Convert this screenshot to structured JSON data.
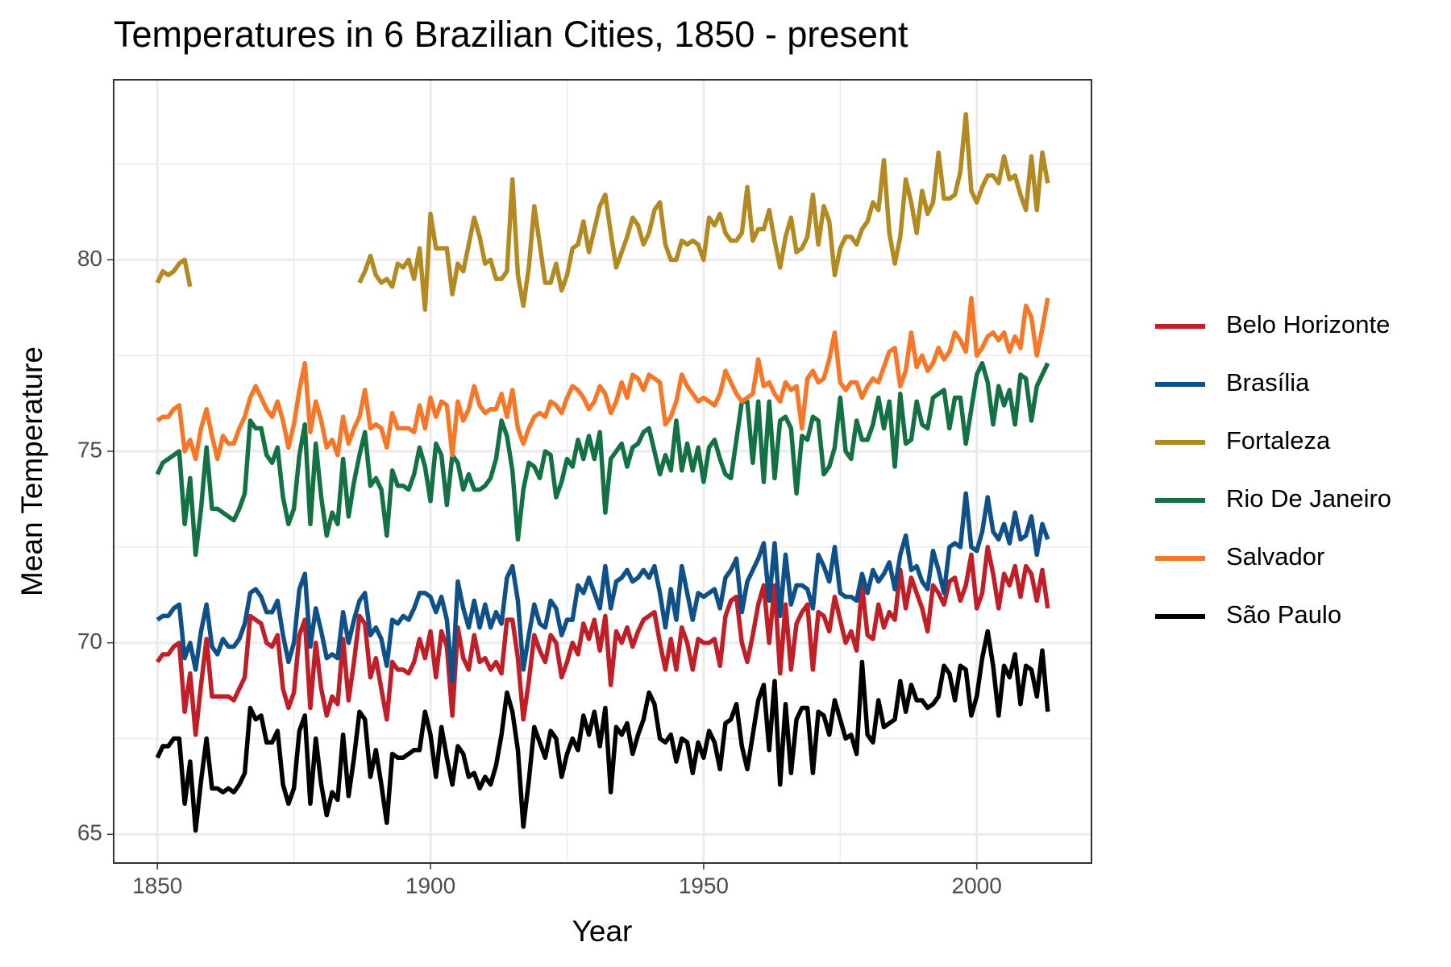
{
  "chart_data": {
    "type": "line",
    "title": "Temperatures in 6 Brazilian Cities, 1850 - present",
    "x_label": "Year",
    "y_label": "Mean Temperature",
    "xlim": [
      1842,
      2021
    ],
    "ylim": [
      64.25,
      84.7
    ],
    "xticks": [
      1850,
      1900,
      1950,
      2000
    ],
    "yticks": [
      65,
      70,
      75,
      80
    ],
    "x_minor_ticks": [
      1875,
      1925,
      1975
    ],
    "y_minor_ticks": [
      67.5,
      72.5,
      77.5,
      82.5
    ],
    "grid": true,
    "legend": "right",
    "x": [
      1850,
      1851,
      1852,
      1853,
      1854,
      1855,
      1856,
      1857,
      1858,
      1859,
      1860,
      1861,
      1862,
      1863,
      1864,
      1865,
      1866,
      1867,
      1868,
      1869,
      1870,
      1871,
      1872,
      1873,
      1874,
      1875,
      1876,
      1877,
      1878,
      1879,
      1880,
      1881,
      1882,
      1883,
      1884,
      1885,
      1886,
      1887,
      1888,
      1889,
      1890,
      1891,
      1892,
      1893,
      1894,
      1895,
      1896,
      1897,
      1898,
      1899,
      1900,
      1901,
      1902,
      1903,
      1904,
      1905,
      1906,
      1907,
      1908,
      1909,
      1910,
      1911,
      1912,
      1913,
      1914,
      1915,
      1916,
      1917,
      1918,
      1919,
      1920,
      1921,
      1922,
      1923,
      1924,
      1925,
      1926,
      1927,
      1928,
      1929,
      1930,
      1931,
      1932,
      1933,
      1934,
      1935,
      1936,
      1937,
      1938,
      1939,
      1940,
      1941,
      1942,
      1943,
      1944,
      1945,
      1946,
      1947,
      1948,
      1949,
      1950,
      1951,
      1952,
      1953,
      1954,
      1955,
      1956,
      1957,
      1958,
      1959,
      1960,
      1961,
      1962,
      1963,
      1964,
      1965,
      1966,
      1967,
      1968,
      1969,
      1970,
      1971,
      1972,
      1973,
      1974,
      1975,
      1976,
      1977,
      1978,
      1979,
      1980,
      1981,
      1982,
      1983,
      1984,
      1985,
      1986,
      1987,
      1988,
      1989,
      1990,
      1991,
      1992,
      1993,
      1994,
      1995,
      1996,
      1997,
      1998,
      1999,
      2000,
      2001,
      2002,
      2003,
      2004,
      2005,
      2006,
      2007,
      2008,
      2009,
      2010,
      2011,
      2012,
      2013
    ],
    "series": [
      {
        "name": "Belo Horizonte",
        "color": "#c01f27",
        "values": [
          69.5,
          69.7,
          69.7,
          69.9,
          70.0,
          68.2,
          69.2,
          67.6,
          68.9,
          70.1,
          68.6,
          68.6,
          68.6,
          68.6,
          68.5,
          68.8,
          69.1,
          70.7,
          70.6,
          70.5,
          70.0,
          69.9,
          70.2,
          68.8,
          68.3,
          68.7,
          70.2,
          70.6,
          68.3,
          70.0,
          68.8,
          68.1,
          68.6,
          68.4,
          70.1,
          68.5,
          69.5,
          70.7,
          70.5,
          69.1,
          69.6,
          68.8,
          68.0,
          69.5,
          69.3,
          69.3,
          69.2,
          69.5,
          70.1,
          69.6,
          70.3,
          69.1,
          70.3,
          69.9,
          68.1,
          70.4,
          69.6,
          69.3,
          70.2,
          69.5,
          69.6,
          69.3,
          69.5,
          69.2,
          70.6,
          70.6,
          69.6,
          68.0,
          69.0,
          70.2,
          69.8,
          69.5,
          70.2,
          70.0,
          69.1,
          69.5,
          70.0,
          69.7,
          70.5,
          70.1,
          70.6,
          69.8,
          70.7,
          68.9,
          70.3,
          70.0,
          70.4,
          69.9,
          70.3,
          70.6,
          70.7,
          70.8,
          70.0,
          69.3,
          70.1,
          69.3,
          70.4,
          70.0,
          69.3,
          70.1,
          70.0,
          70.0,
          70.1,
          69.4,
          70.7,
          71.1,
          71.2,
          70.0,
          69.5,
          70.2,
          71.0,
          71.5,
          70.0,
          71.5,
          69.2,
          71.0,
          69.3,
          70.5,
          70.8,
          71.0,
          69.3,
          70.8,
          70.7,
          70.3,
          71.2,
          70.6,
          70.0,
          70.3,
          69.8,
          71.5,
          70.2,
          70.1,
          71.0,
          70.4,
          70.8,
          70.6,
          71.9,
          70.9,
          71.7,
          71.3,
          70.9,
          70.3,
          71.5,
          71.3,
          71.0,
          71.6,
          71.7,
          71.1,
          71.5,
          72.3,
          70.9,
          71.3,
          72.5,
          71.8,
          70.9,
          71.8,
          71.5,
          72.0,
          71.2,
          72.0,
          71.8,
          71.1,
          71.9,
          70.9
        ]
      },
      {
        "name": "Brasília",
        "color": "#0f5088",
        "values": [
          70.6,
          70.7,
          70.7,
          70.9,
          71.0,
          69.6,
          70.0,
          69.3,
          70.3,
          71.0,
          69.9,
          69.7,
          70.1,
          69.9,
          69.9,
          70.1,
          70.5,
          71.3,
          71.4,
          71.2,
          70.8,
          70.8,
          71.1,
          70.2,
          69.5,
          70.0,
          71.4,
          71.8,
          69.9,
          70.9,
          70.3,
          69.6,
          69.7,
          69.6,
          70.8,
          70.0,
          70.6,
          71.1,
          71.3,
          70.2,
          70.4,
          70.1,
          69.4,
          70.6,
          70.5,
          70.7,
          70.6,
          70.9,
          71.3,
          71.3,
          71.2,
          70.8,
          71.2,
          70.6,
          69.0,
          71.6,
          70.9,
          70.4,
          71.1,
          70.4,
          71.0,
          70.4,
          70.8,
          70.5,
          71.7,
          72.0,
          71.1,
          69.3,
          70.2,
          71.0,
          70.5,
          70.4,
          71.1,
          70.9,
          70.2,
          70.6,
          70.6,
          71.5,
          71.3,
          71.7,
          71.3,
          70.9,
          72.0,
          70.9,
          71.6,
          71.7,
          71.9,
          71.6,
          71.7,
          71.9,
          71.7,
          72.0,
          71.3,
          70.4,
          71.4,
          70.6,
          72.0,
          71.3,
          70.6,
          71.3,
          71.2,
          71.3,
          71.4,
          70.9,
          71.7,
          71.9,
          72.2,
          70.8,
          71.6,
          71.9,
          72.2,
          72.6,
          71.1,
          72.6,
          70.7,
          72.3,
          71.0,
          71.5,
          71.5,
          71.4,
          70.9,
          72.3,
          72.0,
          71.6,
          72.5,
          71.3,
          71.2,
          71.2,
          71.1,
          71.8,
          71.3,
          71.9,
          71.6,
          71.8,
          72.1,
          71.4,
          72.3,
          72.8,
          71.9,
          72.0,
          71.6,
          71.4,
          72.4,
          71.9,
          71.3,
          72.5,
          72.6,
          72.5,
          73.9,
          72.5,
          72.4,
          72.9,
          73.8,
          72.9,
          72.7,
          73.1,
          72.6,
          73.4,
          72.7,
          72.8,
          73.3,
          72.3,
          73.1,
          72.7
        ]
      },
      {
        "name": "Fortaleza",
        "color": "#b38a22",
        "values": [
          79.4,
          79.7,
          79.6,
          79.7,
          79.9,
          80.0,
          79.3,
          null,
          null,
          null,
          null,
          null,
          null,
          null,
          null,
          null,
          null,
          null,
          null,
          null,
          null,
          null,
          null,
          null,
          null,
          null,
          null,
          null,
          null,
          null,
          null,
          null,
          null,
          null,
          null,
          null,
          null,
          79.4,
          79.7,
          80.1,
          79.6,
          79.4,
          79.5,
          79.3,
          79.9,
          79.8,
          80.0,
          79.5,
          80.3,
          78.7,
          81.2,
          80.3,
          80.3,
          80.3,
          79.1,
          79.9,
          79.7,
          80.4,
          81.1,
          80.6,
          79.9,
          80.0,
          79.5,
          79.5,
          79.7,
          82.1,
          79.6,
          78.8,
          79.8,
          81.4,
          80.4,
          79.4,
          79.4,
          79.9,
          79.2,
          79.6,
          80.3,
          80.4,
          81.0,
          80.2,
          80.8,
          81.4,
          81.7,
          80.7,
          79.8,
          80.2,
          80.6,
          81.1,
          80.9,
          80.4,
          80.7,
          81.3,
          81.5,
          80.4,
          80.0,
          80.0,
          80.5,
          80.4,
          80.5,
          80.4,
          80.0,
          81.1,
          80.9,
          81.2,
          80.7,
          80.5,
          80.5,
          80.7,
          81.9,
          80.5,
          80.8,
          80.8,
          81.3,
          80.5,
          79.8,
          80.6,
          81.1,
          80.2,
          80.3,
          80.6,
          81.7,
          80.4,
          81.4,
          81.0,
          79.6,
          80.3,
          80.6,
          80.6,
          80.4,
          80.8,
          81.0,
          81.5,
          81.3,
          82.6,
          80.7,
          79.9,
          80.6,
          82.1,
          81.5,
          80.7,
          81.8,
          81.2,
          81.5,
          82.8,
          81.6,
          81.6,
          81.7,
          82.3,
          83.8,
          81.8,
          81.5,
          81.9,
          82.2,
          82.2,
          82.0,
          82.7,
          82.1,
          82.2,
          81.7,
          81.3,
          82.7,
          81.3,
          82.8,
          82.0
        ]
      },
      {
        "name": "Rio De Janeiro",
        "color": "#137143",
        "values": [
          74.4,
          74.7,
          74.8,
          74.9,
          75.0,
          73.1,
          74.3,
          72.3,
          73.5,
          75.1,
          73.5,
          73.5,
          73.4,
          73.3,
          73.2,
          73.5,
          73.9,
          75.8,
          75.6,
          75.6,
          74.9,
          74.7,
          75.1,
          73.8,
          73.1,
          73.5,
          74.9,
          75.7,
          73.1,
          75.2,
          73.8,
          72.8,
          73.4,
          73.1,
          74.8,
          73.3,
          74.2,
          74.9,
          75.5,
          74.1,
          74.3,
          74.0,
          72.8,
          74.5,
          74.1,
          74.1,
          74.0,
          74.4,
          75.1,
          74.6,
          73.7,
          75.2,
          74.9,
          73.6,
          74.9,
          74.7,
          74.0,
          74.4,
          74.0,
          74.0,
          74.1,
          74.3,
          74.8,
          75.8,
          75.4,
          74.5,
          72.7,
          74.0,
          74.7,
          74.6,
          74.3,
          75.0,
          74.9,
          73.8,
          74.2,
          74.8,
          74.6,
          75.3,
          74.8,
          75.4,
          74.8,
          75.5,
          73.4,
          74.8,
          75.0,
          75.2,
          74.6,
          75.1,
          75.2,
          75.5,
          75.6,
          75.0,
          74.4,
          74.9,
          74.5,
          75.8,
          74.5,
          75.2,
          74.5,
          75.1,
          74.2,
          75.1,
          75.3,
          74.8,
          74.4,
          74.3,
          75.3,
          76.3,
          76.3,
          74.7,
          76.3,
          74.2,
          76.3,
          74.3,
          75.8,
          75.9,
          75.6,
          73.9,
          75.4,
          75.3,
          75.9,
          75.8,
          74.4,
          74.6,
          75.1,
          76.4,
          75.0,
          74.8,
          75.8,
          75.3,
          75.3,
          75.7,
          76.4,
          75.6,
          76.3,
          74.6,
          76.5,
          75.2,
          75.3,
          76.3,
          75.7,
          75.6,
          76.4,
          76.5,
          76.6,
          75.6,
          76.4,
          76.4,
          75.2,
          76.1,
          77.0,
          77.3,
          76.8,
          75.7,
          76.7,
          76.2,
          76.6,
          75.7,
          77.0,
          76.9,
          75.8,
          76.7,
          77.0,
          77.3
        ]
      },
      {
        "name": "Salvador",
        "color": "#f57727",
        "values": [
          75.8,
          75.9,
          75.9,
          76.1,
          76.2,
          75.0,
          75.3,
          74.8,
          75.6,
          76.1,
          75.4,
          74.8,
          75.4,
          75.2,
          75.2,
          75.6,
          75.9,
          76.4,
          76.7,
          76.4,
          76.1,
          75.9,
          76.3,
          75.8,
          75.1,
          75.7,
          76.6,
          77.3,
          75.5,
          76.3,
          75.8,
          75.1,
          75.3,
          74.9,
          75.9,
          75.2,
          75.6,
          75.9,
          76.6,
          75.6,
          75.7,
          75.6,
          75.1,
          76.0,
          75.6,
          75.6,
          75.6,
          75.5,
          76.2,
          75.6,
          76.4,
          75.9,
          76.3,
          76.2,
          74.9,
          76.3,
          75.8,
          76.1,
          76.7,
          76.2,
          76.0,
          76.1,
          76.1,
          76.5,
          75.9,
          76.6,
          75.6,
          75.2,
          75.6,
          75.9,
          76.0,
          75.9,
          76.3,
          76.2,
          76.0,
          76.4,
          76.7,
          76.6,
          76.4,
          76.1,
          76.3,
          76.7,
          76.5,
          76.0,
          76.3,
          76.8,
          76.4,
          77.0,
          76.9,
          76.6,
          77.0,
          76.9,
          76.8,
          75.7,
          75.9,
          76.3,
          77.0,
          76.7,
          76.5,
          76.3,
          76.4,
          76.3,
          76.2,
          76.5,
          77.1,
          76.8,
          76.5,
          76.3,
          76.4,
          76.5,
          77.4,
          76.7,
          76.8,
          76.5,
          76.3,
          76.8,
          76.6,
          76.7,
          75.6,
          76.9,
          77.1,
          76.8,
          76.9,
          77.4,
          78.1,
          76.8,
          76.6,
          76.8,
          76.8,
          76.4,
          76.7,
          76.9,
          76.8,
          77.2,
          77.6,
          77.7,
          76.7,
          77.1,
          78.1,
          77.2,
          77.5,
          77.1,
          77.3,
          77.7,
          77.4,
          77.6,
          78.1,
          77.9,
          77.6,
          79.0,
          77.5,
          77.7,
          78.0,
          78.1,
          77.9,
          78.1,
          77.6,
          78.0,
          77.7,
          78.8,
          78.5,
          77.5,
          78.2,
          79.0
        ]
      },
      {
        "name": "São Paulo",
        "color": "#000000",
        "values": [
          67.0,
          67.3,
          67.3,
          67.5,
          67.5,
          65.8,
          66.9,
          65.1,
          66.4,
          67.5,
          66.2,
          66.2,
          66.1,
          66.2,
          66.1,
          66.3,
          66.6,
          68.3,
          68.0,
          68.1,
          67.4,
          67.4,
          67.7,
          66.3,
          65.8,
          66.2,
          67.7,
          68.1,
          65.8,
          67.5,
          66.3,
          65.5,
          66.1,
          65.9,
          67.6,
          66.0,
          67.0,
          68.2,
          68.0,
          66.5,
          67.2,
          66.3,
          65.3,
          67.1,
          67.0,
          67.0,
          67.1,
          67.2,
          67.2,
          68.2,
          67.6,
          66.5,
          67.8,
          67.0,
          66.3,
          67.3,
          67.1,
          66.5,
          66.6,
          66.2,
          66.5,
          66.3,
          66.8,
          67.6,
          68.7,
          68.2,
          67.2,
          65.2,
          66.4,
          67.8,
          67.4,
          67.0,
          67.7,
          67.5,
          66.5,
          67.1,
          67.5,
          67.2,
          68.1,
          67.6,
          68.2,
          67.3,
          68.3,
          66.1,
          67.8,
          67.6,
          67.9,
          67.1,
          67.6,
          68.0,
          68.7,
          68.4,
          67.5,
          67.4,
          67.6,
          66.9,
          67.5,
          67.4,
          66.6,
          67.4,
          67.0,
          67.7,
          67.4,
          66.7,
          67.9,
          68.0,
          68.4,
          67.3,
          66.7,
          67.6,
          68.5,
          68.9,
          67.2,
          69.0,
          66.3,
          68.4,
          66.6,
          68.0,
          68.3,
          68.3,
          66.6,
          68.2,
          68.1,
          67.6,
          68.5,
          68.0,
          67.5,
          67.6,
          67.1,
          69.5,
          67.6,
          67.4,
          68.5,
          67.8,
          67.9,
          68.0,
          69.0,
          68.2,
          68.9,
          68.5,
          68.5,
          68.3,
          68.4,
          68.6,
          69.4,
          69.2,
          68.5,
          69.4,
          69.3,
          68.1,
          68.6,
          69.6,
          70.3,
          69.4,
          68.1,
          69.4,
          69.1,
          69.7,
          68.4,
          69.4,
          69.3,
          68.6,
          69.8,
          68.2
        ]
      }
    ]
  }
}
